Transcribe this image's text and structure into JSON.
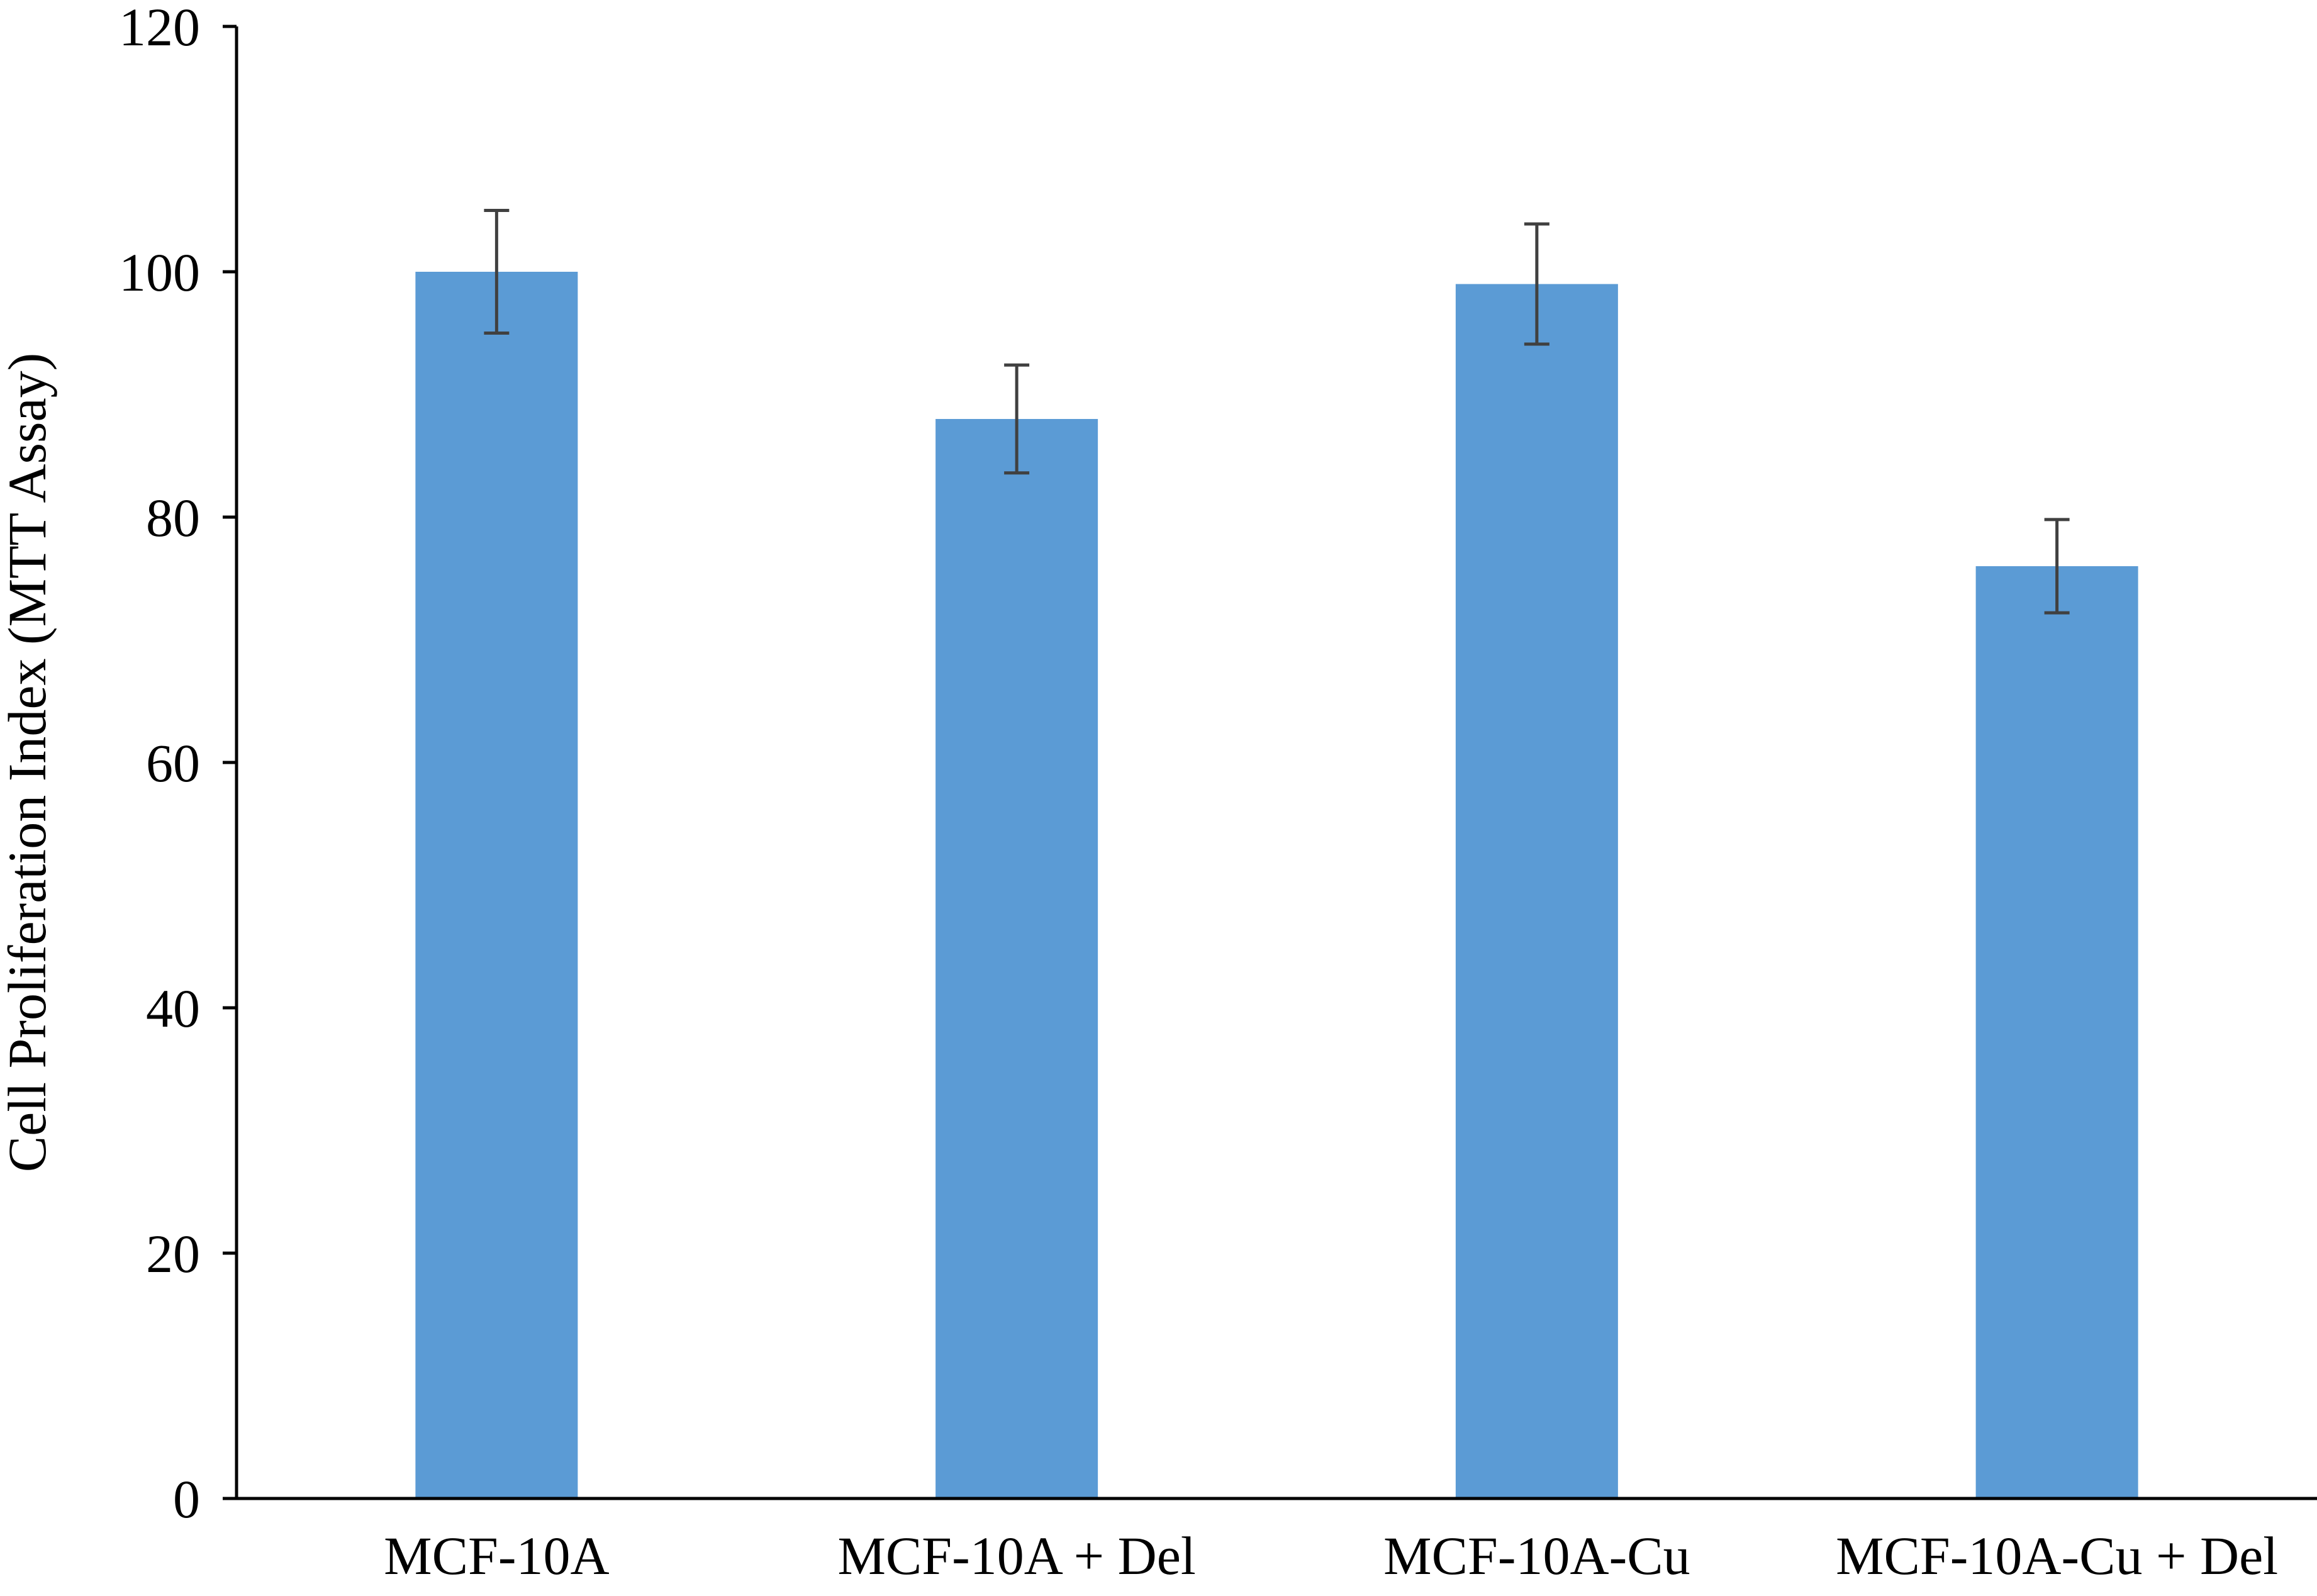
{
  "chart_data": {
    "type": "bar",
    "title": "",
    "xlabel": "",
    "ylabel": "Cell Proliferation Index (MTT Assay)",
    "categories": [
      "MCF-10A",
      "MCF-10A + Del",
      "MCF-10A-Cu",
      "MCF-10A-Cu + Del"
    ],
    "values": [
      100,
      88,
      99,
      76
    ],
    "error": [
      5,
      4.4,
      4.9,
      3.8
    ],
    "ylim": [
      0,
      120
    ],
    "yticks": [
      0,
      20,
      40,
      60,
      80,
      100,
      120
    ],
    "grid": false,
    "legend": "none",
    "colors": {
      "bar": "#5B9BD5",
      "error_bar": "#404040",
      "axis": "#000000"
    }
  }
}
